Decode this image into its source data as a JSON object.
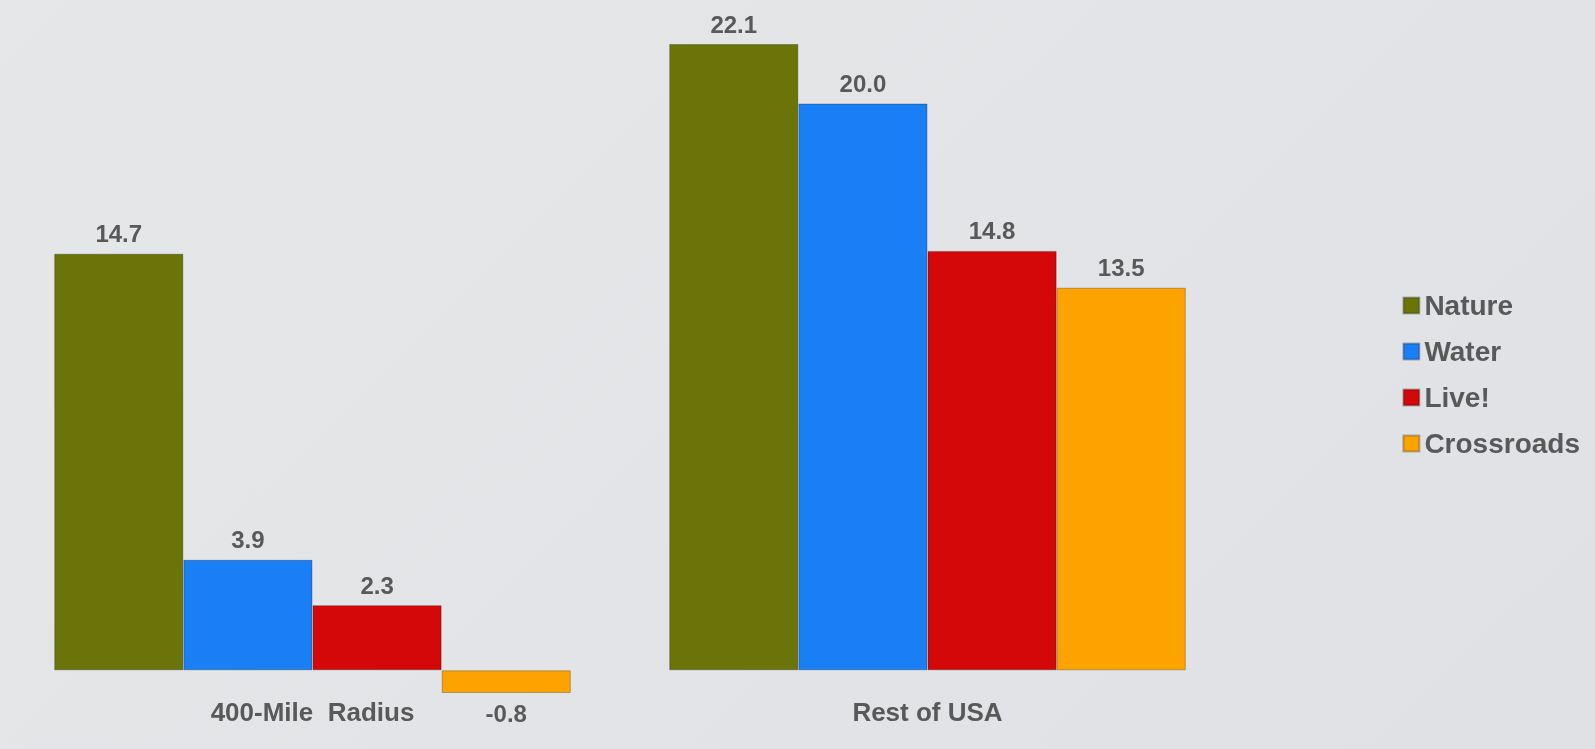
{
  "chart_data": {
    "type": "bar",
    "categories": [
      "400-Mile  Radius",
      "Rest of USA"
    ],
    "series": [
      {
        "name": "Nature",
        "color": "#6b7409",
        "values": [
          14.7,
          22.1
        ],
        "value_labels": [
          "14.7",
          "22.1"
        ]
      },
      {
        "name": "Water",
        "color": "#1a7ef5",
        "values": [
          3.9,
          20.0
        ],
        "value_labels": [
          "3.9",
          "20.0"
        ]
      },
      {
        "name": "Live!",
        "color": "#d40808",
        "values": [
          2.3,
          14.8
        ],
        "value_labels": [
          "2.3",
          "14.8"
        ]
      },
      {
        "name": "Crossroads",
        "color": "#fca300",
        "values": [
          -0.8,
          13.5
        ],
        "value_labels": [
          "-0.8",
          "13.5"
        ]
      }
    ],
    "tick_labels": "x",
    "legend": "right"
  }
}
